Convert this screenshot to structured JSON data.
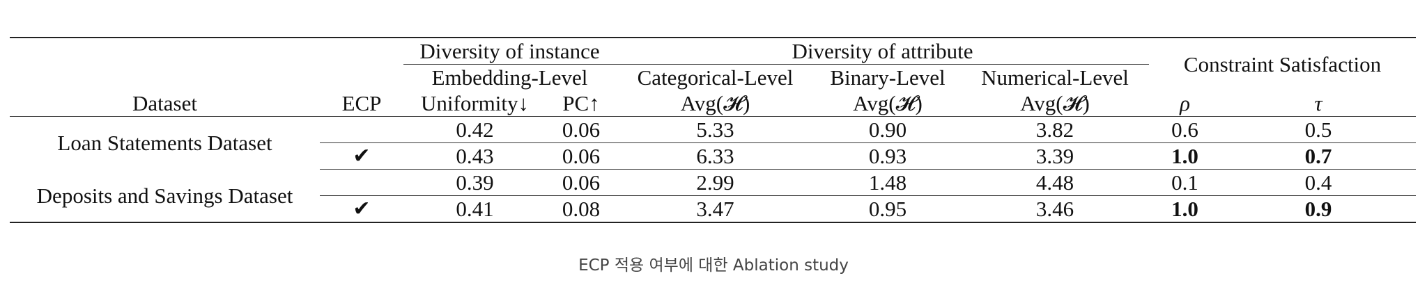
{
  "table": {
    "group_headers": {
      "instance": "Diversity of instance",
      "attribute": "Diversity of attribute",
      "constraint": "Constraint Satisfaction"
    },
    "sub_headers": {
      "embedding": "Embedding-Level",
      "categorical": "Categorical-Level",
      "binary": "Binary-Level",
      "numerical": "Numerical-Level"
    },
    "columns": {
      "dataset": "Dataset",
      "ecp": "ECP",
      "uniformity": "Uniformity↓",
      "pc": "PC↑",
      "cat_avg": "Avg(𝓗)",
      "bin_avg": "Avg(𝓗)",
      "num_avg": "Avg(𝓗)",
      "rho": "ρ",
      "tau": "τ"
    },
    "datasets": [
      {
        "name": "Loan Statements Dataset",
        "rows": [
          {
            "ecp": "",
            "uniformity": "0.42",
            "pc": "0.06",
            "cat": "5.33",
            "bin": "0.90",
            "num": "3.82",
            "rho": "0.6",
            "tau": "0.5"
          },
          {
            "ecp": "✔",
            "uniformity": "0.43",
            "pc": "0.06",
            "cat": "6.33",
            "bin": "0.93",
            "num": "3.39",
            "rho": "1.0",
            "tau": "0.7"
          }
        ]
      },
      {
        "name": "Deposits and Savings Dataset",
        "rows": [
          {
            "ecp": "",
            "uniformity": "0.39",
            "pc": "0.06",
            "cat": "2.99",
            "bin": "1.48",
            "num": "4.48",
            "rho": "0.1",
            "tau": "0.4"
          },
          {
            "ecp": "✔",
            "uniformity": "0.41",
            "pc": "0.08",
            "cat": "3.47",
            "bin": "0.95",
            "num": "3.46",
            "rho": "1.0",
            "tau": "0.9"
          }
        ]
      }
    ]
  },
  "caption": "ECP 적용 여부에 대한 Ablation study"
}
